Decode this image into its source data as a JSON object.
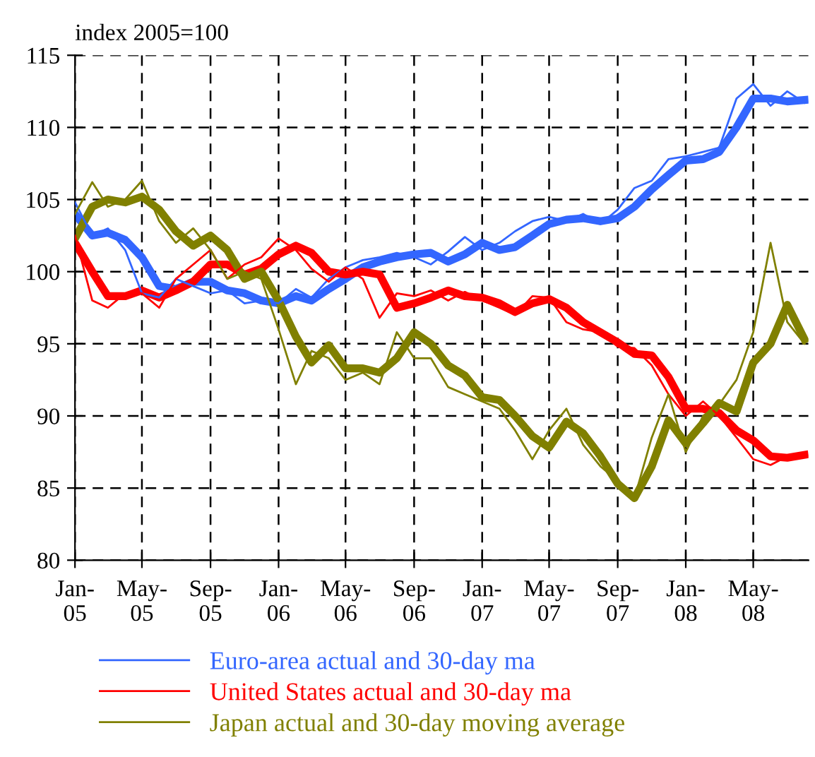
{
  "chart_data": {
    "type": "line",
    "ylabel": "index 2005=100",
    "x": [
      "2005-01-01",
      "2005-02-01",
      "2005-03-01",
      "2005-04-01",
      "2005-05-01",
      "2005-06-01",
      "2005-07-01",
      "2005-08-01",
      "2005-09-01",
      "2005-10-01",
      "2005-11-01",
      "2005-12-01",
      "2006-01-01",
      "2006-02-01",
      "2006-03-01",
      "2006-04-01",
      "2006-05-01",
      "2006-06-01",
      "2006-07-01",
      "2006-08-01",
      "2006-09-01",
      "2006-10-01",
      "2006-11-01",
      "2006-12-01",
      "2007-01-01",
      "2007-02-01",
      "2007-03-01",
      "2007-04-01",
      "2007-05-01",
      "2007-06-01",
      "2007-07-01",
      "2007-08-01",
      "2007-09-01",
      "2007-10-01",
      "2007-11-01",
      "2007-12-01",
      "2008-01-01",
      "2008-02-01",
      "2008-03-01",
      "2008-04-01",
      "2008-05-01",
      "2008-06-01",
      "2008-07-01",
      "2008-08-01"
    ],
    "series": [
      {
        "name": "Euro-area actual and 30-day ma",
        "color": "#3366ff",
        "values": [
          104.8,
          102.5,
          103,
          101.5,
          98.5,
          98.2,
          99.5,
          99,
          98.5,
          98.7,
          97.8,
          98,
          97.8,
          98.8,
          98.2,
          99.5,
          100.3,
          100.8,
          101,
          101.3,
          101,
          100.5,
          101.4,
          102.4,
          101.5,
          102,
          102.8,
          103.5,
          103.8,
          103.5,
          104,
          103.3,
          104.3,
          105.8,
          106.3,
          107.8,
          108,
          108.3,
          108.6,
          112,
          113,
          111.5,
          112.5,
          111.7
        ]
      },
      {
        "name": "United States actual and 30-day ma",
        "color": "#ff0000",
        "values": [
          102.5,
          98,
          97.5,
          98.5,
          98.5,
          97.5,
          99.5,
          100.5,
          101.5,
          99.5,
          100.5,
          101,
          102.3,
          101.5,
          100.2,
          99.3,
          100.3,
          99.5,
          96.8,
          98.5,
          98.3,
          98.7,
          98,
          98.6,
          98,
          97.5,
          97,
          98.3,
          98.2,
          96.5,
          96,
          95.8,
          94.8,
          94.7,
          93.5,
          91.5,
          90,
          91,
          90,
          88.5,
          87,
          86.6,
          87.2,
          87.2
        ]
      },
      {
        "name": "Japan actual and 30-day moving average",
        "color": "#808000",
        "values": [
          104,
          106.2,
          104.5,
          105,
          106.3,
          103.5,
          102,
          103,
          101.5,
          99.5,
          100,
          99.5,
          96,
          92.2,
          94.5,
          94,
          92.5,
          93,
          92.2,
          95.8,
          94,
          94,
          92,
          91.5,
          91,
          90.5,
          89,
          87,
          89,
          90.5,
          88,
          86.5,
          85.5,
          84.3,
          88.5,
          91.5,
          87.5,
          90,
          90.8,
          92.5,
          95.8,
          102,
          96.5,
          95
        ]
      },
      {
        "color": "#3366ff",
        "values": [
          104,
          102.5,
          102.7,
          102.2,
          101,
          99,
          98.8,
          99.3,
          99.3,
          98.7,
          98.5,
          98,
          97.8,
          98.3,
          98,
          98.8,
          99.5,
          100.3,
          100.7,
          101,
          101.2,
          101.3,
          100.7,
          101.2,
          102,
          101.5,
          101.7,
          102.5,
          103.3,
          103.6,
          103.7,
          103.5,
          103.7,
          104.5,
          105.7,
          106.7,
          107.7,
          107.8,
          108.3,
          110,
          112,
          112,
          111.8,
          111.9
        ]
      },
      {
        "color": "#ff0000",
        "values": [
          102,
          100,
          98.3,
          98.3,
          98.7,
          98.2,
          98.7,
          99.3,
          100.5,
          100.5,
          99.8,
          100.2,
          101.2,
          101.8,
          101.3,
          100,
          99.8,
          100,
          99.8,
          97.5,
          97.8,
          98.2,
          98.7,
          98.3,
          98.2,
          97.8,
          97.2,
          97.8,
          98.1,
          97.5,
          96.5,
          95.8,
          95.1,
          94.3,
          94.2,
          92.7,
          90.5,
          90.5,
          90.2,
          89,
          88.3,
          87.2,
          87.1,
          87.3
        ]
      },
      {
        "color": "#808000",
        "values": [
          102.3,
          104.5,
          105,
          104.8,
          105.2,
          104.3,
          102.8,
          101.8,
          102.5,
          101.5,
          99.5,
          100,
          98,
          95.5,
          93.7,
          94.9,
          93.3,
          93.3,
          93,
          94,
          95.8,
          95,
          93.5,
          92.8,
          91.3,
          91.1,
          90,
          88.6,
          87.8,
          89.6,
          88.8,
          87.2,
          85.3,
          84.3,
          86.5,
          89.7,
          88.1,
          89.5,
          90.9,
          90.3,
          93.7,
          95,
          97.7,
          95.3
        ]
      }
    ],
    "xlim": [
      "2005-01-01",
      "2008-08-08"
    ],
    "xticks": [
      {
        "value": "2005-01-01",
        "label": "Jan-\n05"
      },
      {
        "value": "2005-05-01",
        "label": "May-\n05"
      },
      {
        "value": "2005-09-01",
        "label": "Sep-\n05"
      },
      {
        "value": "2006-01-01",
        "label": "Jan-\n06"
      },
      {
        "value": "2006-05-01",
        "label": "May-\n06"
      },
      {
        "value": "2006-09-01",
        "label": "Sep-\n06"
      },
      {
        "value": "2007-01-01",
        "label": "Jan-\n07"
      },
      {
        "value": "2007-05-01",
        "label": "May-\n07"
      },
      {
        "value": "2007-09-01",
        "label": "Sep-\n07"
      },
      {
        "value": "2008-01-01",
        "label": "Jan-\n08"
      },
      {
        "value": "2008-05-01",
        "label": "May-\n08"
      }
    ],
    "ylim": [
      80,
      115
    ],
    "yticks": [
      80,
      85,
      90,
      95,
      100,
      105,
      110,
      115
    ],
    "grid": true,
    "legend": "bottom",
    "line_style": "solid",
    "marker": "none"
  }
}
